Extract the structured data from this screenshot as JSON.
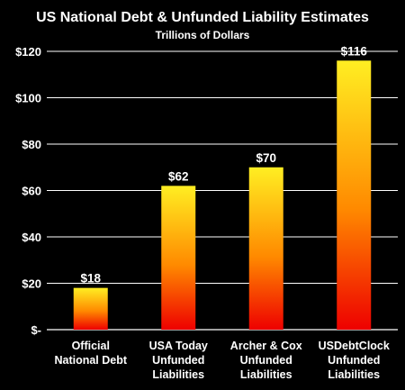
{
  "chart_data": {
    "type": "bar",
    "title": "US National Debt & Unfunded Liability Estimates",
    "subtitle": "Trillions of Dollars",
    "xlabel": "",
    "ylabel": "",
    "categories": [
      [
        "Official",
        "National Debt"
      ],
      [
        "USA Today",
        "Unfunded",
        "Liabilities"
      ],
      [
        "Archer & Cox",
        "Unfunded",
        "Liabilities"
      ],
      [
        "USDebtClock",
        "Unfunded",
        "Liabilities"
      ]
    ],
    "values": [
      18,
      62,
      70,
      116
    ],
    "data_labels": [
      "$18",
      "$62",
      "$70",
      "$116"
    ],
    "ylim": [
      0,
      120
    ],
    "yticks": [
      0,
      20,
      40,
      60,
      80,
      100,
      120
    ],
    "ytick_labels": [
      "$-",
      "$20",
      "$40",
      "$60",
      "$80",
      "$100",
      "$120"
    ],
    "grid": true,
    "colors": {
      "background": "#000000",
      "bar_top": "#ffee22",
      "bar_mid": "#ff8a00",
      "bar_bottom": "#ee0000",
      "text": "#ffffff"
    }
  }
}
